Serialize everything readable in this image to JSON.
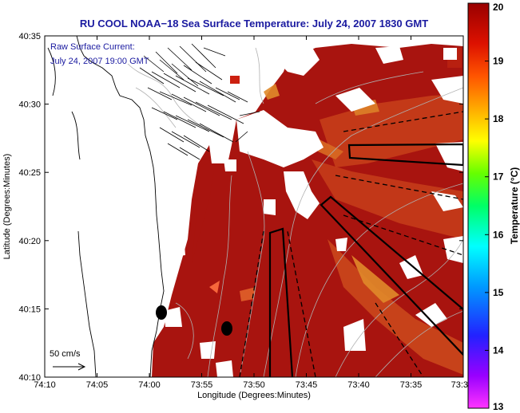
{
  "title": "RU COOL  NOAA−18  Sea Surface Temperature:  July 24, 2007 1830 GMT",
  "annotation": {
    "line1": "Raw Surface Current:",
    "line2": "July 24, 2007 19:00 GMT"
  },
  "scale_label": "50 cm/s",
  "x_axis": {
    "label": "Longitude (Degrees:Minutes)",
    "ticks": [
      "74:10",
      "74:05",
      "74:00",
      "73:55",
      "73:50",
      "73:45",
      "73:40",
      "73:35",
      "73:3"
    ]
  },
  "y_axis": {
    "label": "Latitude (Degrees:Minutes)",
    "ticks": [
      "40:35",
      "40:30",
      "40:25",
      "40:20",
      "40:15",
      "40:10"
    ]
  },
  "colorbar": {
    "label": "Temperature (°C)",
    "min": 13,
    "max": 20,
    "ticks": [
      "20",
      "19",
      "18",
      "17",
      "16",
      "15",
      "14",
      "13"
    ]
  },
  "colors": {
    "land": "#ffffff",
    "sst_warm": "#a8140f",
    "sst_mid": "#c8401a",
    "sst_cool": "#e08a2a",
    "title_blue": "#1a1aa0"
  }
}
